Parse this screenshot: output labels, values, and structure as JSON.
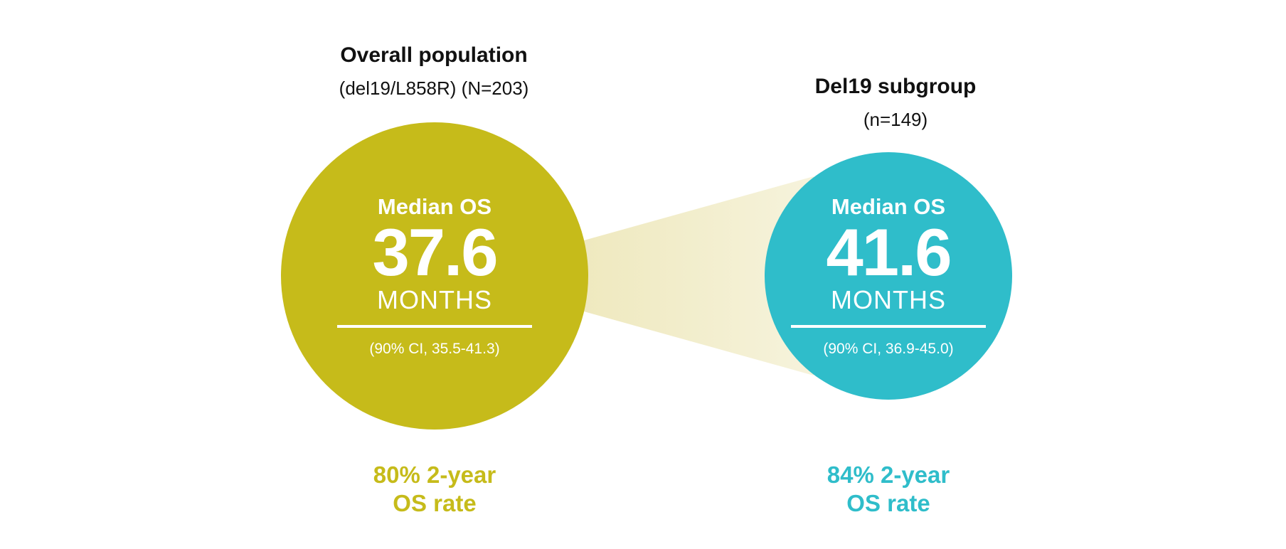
{
  "chart_data": {
    "type": "comparison-circles",
    "title": "",
    "colors": {
      "overall": "#c6bb1a",
      "del19": "#2fbdca",
      "connector": "#efe9bf"
    },
    "groups": [
      {
        "title": "Overall population",
        "subtitle": "(del19/L858R) (N=203)",
        "metric_label": "Median OS",
        "value": 37.6,
        "value_text": "37.6",
        "unit": "MONTHS",
        "ci_text": "(90% CI, 35.5-41.3)",
        "ci": [
          35.5,
          41.3
        ],
        "two_year_rate": 80,
        "rate_line1": "80% 2-year",
        "rate_line2": "OS rate"
      },
      {
        "title": "Del19 subgroup",
        "subtitle": "(n=149)",
        "metric_label": "Median OS",
        "value": 41.6,
        "value_text": "41.6",
        "unit": "MONTHS",
        "ci_text": "(90% CI, 36.9-45.0)",
        "ci": [
          36.9,
          45.0
        ],
        "two_year_rate": 84,
        "rate_line1": "84% 2-year",
        "rate_line2": "OS rate"
      }
    ]
  }
}
